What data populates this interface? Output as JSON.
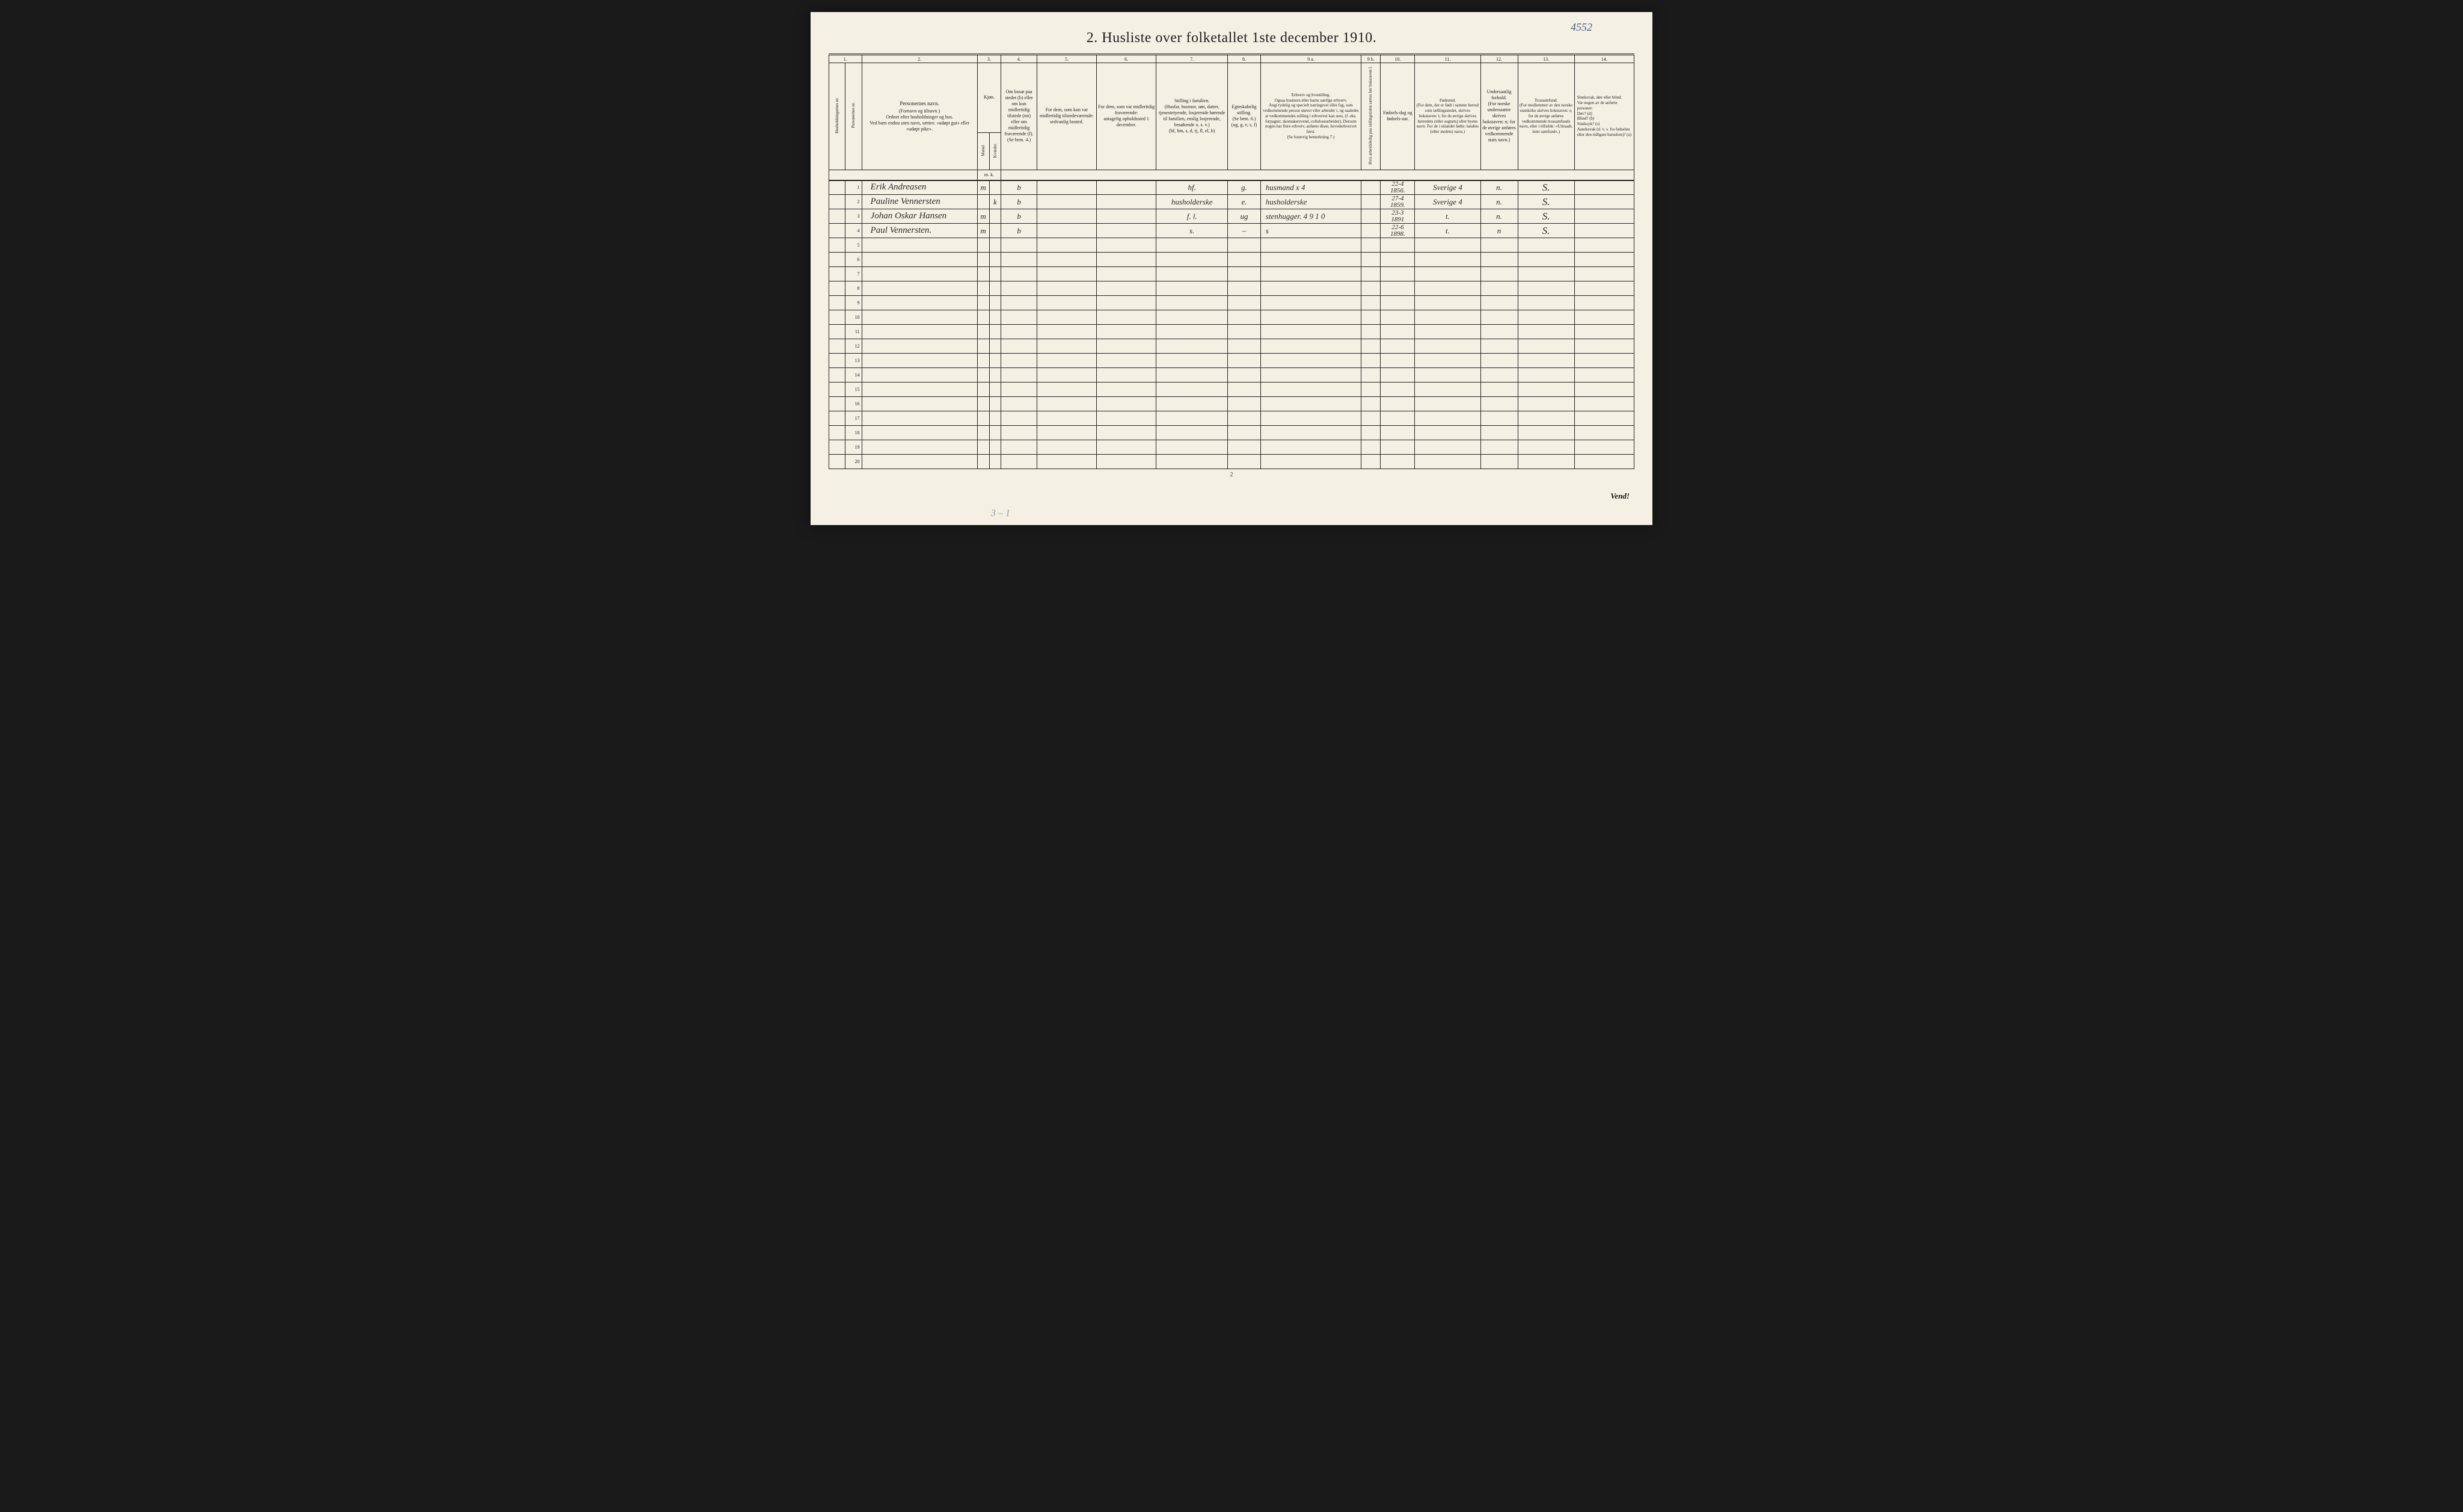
{
  "handwritten_page_no": "4552",
  "title": "2.  Husliste over folketallet 1ste december 1910.",
  "footer_page_number": "2",
  "footer_turn": "Vend!",
  "bottom_handwritten": "3 – 1",
  "column_numbers": [
    "1.",
    "",
    "2.",
    "3.",
    "4.",
    "5.",
    "6.",
    "7.",
    "8.",
    "9 a.",
    "9 b.",
    "10.",
    "11.",
    "12.",
    "13.",
    "14."
  ],
  "headers": {
    "c1": "Husholdningernes nr.",
    "c1b": "Personernes nr.",
    "c2_title": "Personernes navn.",
    "c2_sub": "(Fornavn og tilnavn.)\nOrdnet efter husholdninger og hus.\nVed barn endnu uten navn, sættes: «udøpt gut» eller «udøpt pike».",
    "c3_title": "Kjøn.",
    "c3_m": "Mænd.",
    "c3_k": "Kvinder.",
    "c3_mk": "m.  k.",
    "c4": "Om bosat paa stedet (b) eller om kun midlertidig tilstede (mt) eller om midlertidig fraværende (f). (Se bem. 4.)",
    "c5": "For dem, som kun var midlertidig tilstedeværende:\nsedvanlig bosted.",
    "c6": "For dem, som var midlertidig fraværende:\nantagelig opholdssted 1 december.",
    "c7": "Stilling i familien.\n(Husfar, husmor, søn, datter, tjenestetyende, losjerende hørende til familien, enslig losjerende, besøkende o. s. v.)\n(hf, hm, s, d, tj, fl, el, b)",
    "c8": "Egteskabelig stilling.\n(Se bem. 6.)\n(ug, g, e, s, f)",
    "c9a": "Erhverv og livsstilling.\nOgsaa husmors eller barns særlige erhverv.\nAngi tydelig og specielt næringsvei eller fag, som vedkommende person utøver eller arbeider i, og saaledes at vedkommendes stilling i erhvervet kan sees, (f. eks. forpagter, skomakersvend, cellulosearbeider). Dersom nogen har flere erhverv, anføres disse, hovederhvervet først.\n(Se forøvrig bemerkning 7.)",
    "c9b": "Hvis arbeidsledig paa tællingstiden sættes her bokstaven l.",
    "c10": "Fødsels-dag og fødsels-aar.",
    "c11": "Fødested.\n(For dem, der er født i samme herred som tællingsstedet, skrives bokstaven: t; for de øvrige skrives herredets (eller sognets) eller byens navn. For de i utlandet fødte: landets (eller stedets) navn.)",
    "c12": "Undersaatlig forhold.\n(For norske undersaatter skrives bokstaven: n; for de øvrige anføres vedkommende stats navn.)",
    "c13": "Trossamfund.\n(For medlemmer av den norske statskirke skrives bokstaven: s; for de øvrige anføres vedkommende trossamfunds navn, eller i tilfælde: «Uttraadt, intet samfund».)",
    "c14": "Sindssvak, døv eller blind.\nVar nogen av de anførte personer:\nDøv?       (d)\nBlind?      (b)\nSindssyk?  (s)\nAandssvak (d. v. s. fra fødselen eller den tidligste barndom)?  (a)"
  },
  "rows": [
    {
      "n": "1",
      "name": "Erik  Andreasen",
      "sex": "m",
      "res": "b",
      "fam": "hf.",
      "mar": "g.",
      "occ": "husmand   x 4",
      "dob": "22-4\n1856.",
      "birthplace": "Sverige  4",
      "nat": "n.",
      "rel": "S."
    },
    {
      "n": "2",
      "name": "Pauline Vennersten",
      "sex": "k",
      "res": "b",
      "fam": "husholderske",
      "mar": "e.",
      "occ": "husholderske",
      "dob": "27-4\n1859.",
      "birthplace": "Sverige  4",
      "nat": "n.",
      "rel": "S."
    },
    {
      "n": "3",
      "name": "Johan Oskar Hansen",
      "sex": "m",
      "res": "b",
      "fam": "f. l.",
      "mar": "ug",
      "occ": "stenhugger.  4 9 1 0",
      "dob": "23-3\n1891",
      "birthplace": "t.",
      "nat": "n.",
      "rel": "S."
    },
    {
      "n": "4",
      "name": "Paul  Vennersten.",
      "sex": "m",
      "res": "b",
      "fam": "s.",
      "mar": "–",
      "occ": "s",
      "dob": "22-6\n1898.",
      "birthplace": "t.",
      "nat": "n",
      "rel": "S."
    }
  ],
  "empty_rows": [
    "5",
    "6",
    "7",
    "8",
    "9",
    "10",
    "11",
    "12",
    "13",
    "14",
    "15",
    "16",
    "17",
    "18",
    "19",
    "20"
  ],
  "colwidths_pct": [
    2.2,
    2.2,
    15.5,
    1.6,
    1.6,
    4.8,
    8.0,
    8.0,
    9.6,
    4.4,
    13.5,
    2.6,
    4.6,
    8.8,
    5.0,
    7.6
  ],
  "colors": {
    "paper": "#f4f0e4",
    "ink": "#222222",
    "handwriting": "#2a2a2a",
    "pencil_blue": "#8899bb"
  }
}
